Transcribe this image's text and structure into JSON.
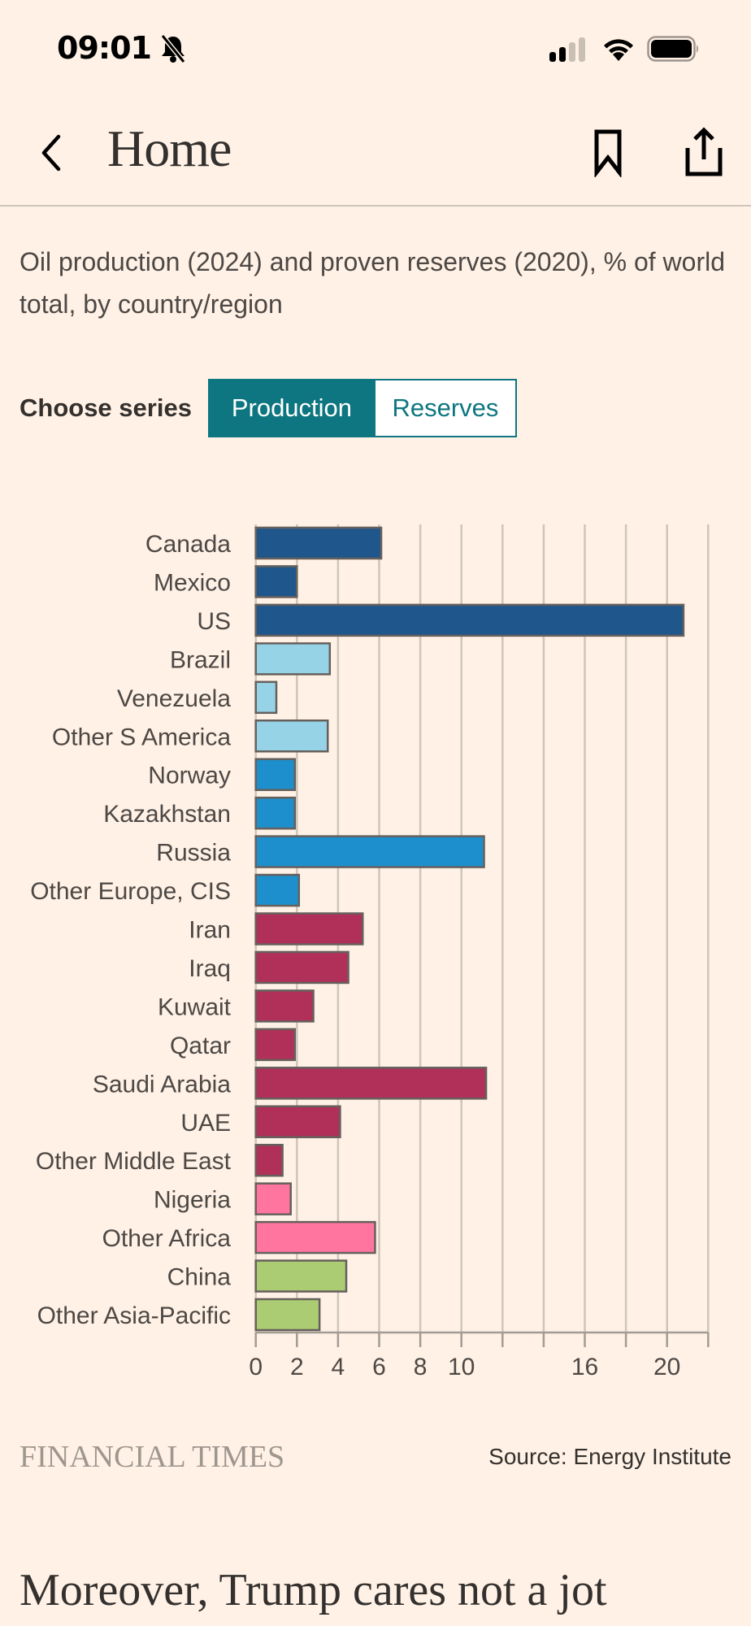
{
  "status_bar": {
    "time": "09:01",
    "icons": [
      "bell-slash-icon",
      "cellular-signal-icon",
      "wifi-icon",
      "battery-icon"
    ]
  },
  "nav": {
    "back_icon": "chevron-left-icon",
    "title": "Home",
    "bookmark_icon": "bookmark-icon",
    "share_icon": "share-icon"
  },
  "article": {
    "chart_subtitle": "Oil production (2024) and proven reserves (2020), % of world total, by country/region",
    "series_selector": {
      "label": "Choose series",
      "options": [
        "Production",
        "Reserves"
      ],
      "selected": "Production"
    },
    "footer": {
      "brand": "FINANCIAL TIMES",
      "source": "Source: Energy Institute"
    },
    "next_heading": "Moreover, Trump cares not a jot"
  },
  "colors": {
    "background": "#FFF1E5",
    "accent": "#0D7680",
    "north_america": "#1F568C",
    "south_america": "#96D3E6",
    "europe_cis": "#1E8FCD",
    "middle_east": "#B03059",
    "africa": "#FF75A0",
    "asia_pacific": "#ABCC73"
  },
  "chart_data": {
    "type": "bar",
    "orientation": "horizontal",
    "title": "Oil production (2024) and proven reserves (2020), % of world total, by country/region",
    "series_shown": "Production",
    "xlabel": "",
    "ylabel": "",
    "xlim": [
      0,
      22
    ],
    "x_gridlines": [
      0,
      2,
      4,
      6,
      8,
      10,
      12,
      14,
      16,
      18,
      20,
      22
    ],
    "x_tick_labels": [
      "0",
      "2",
      "4",
      "6",
      "8",
      "10",
      "16",
      "20"
    ],
    "grid": true,
    "categories": [
      "Canada",
      "Mexico",
      "US",
      "Brazil",
      "Venezuela",
      "Other S America",
      "Norway",
      "Kazakhstan",
      "Russia",
      "Other Europe, CIS",
      "Iran",
      "Iraq",
      "Kuwait",
      "Qatar",
      "Saudi Arabia",
      "UAE",
      "Other Middle East",
      "Nigeria",
      "Other Africa",
      "China",
      "Other Asia-Pacific"
    ],
    "values": [
      6.1,
      2.0,
      20.8,
      3.6,
      1.0,
      3.5,
      1.9,
      1.9,
      11.1,
      2.1,
      5.2,
      4.5,
      2.8,
      1.9,
      11.2,
      4.1,
      1.3,
      1.7,
      5.8,
      4.4,
      3.1
    ],
    "groups": [
      "north_america",
      "north_america",
      "north_america",
      "south_america",
      "south_america",
      "south_america",
      "europe_cis",
      "europe_cis",
      "europe_cis",
      "europe_cis",
      "middle_east",
      "middle_east",
      "middle_east",
      "middle_east",
      "middle_east",
      "middle_east",
      "middle_east",
      "africa",
      "africa",
      "asia_pacific",
      "asia_pacific"
    ],
    "source": "Source: Energy Institute"
  }
}
